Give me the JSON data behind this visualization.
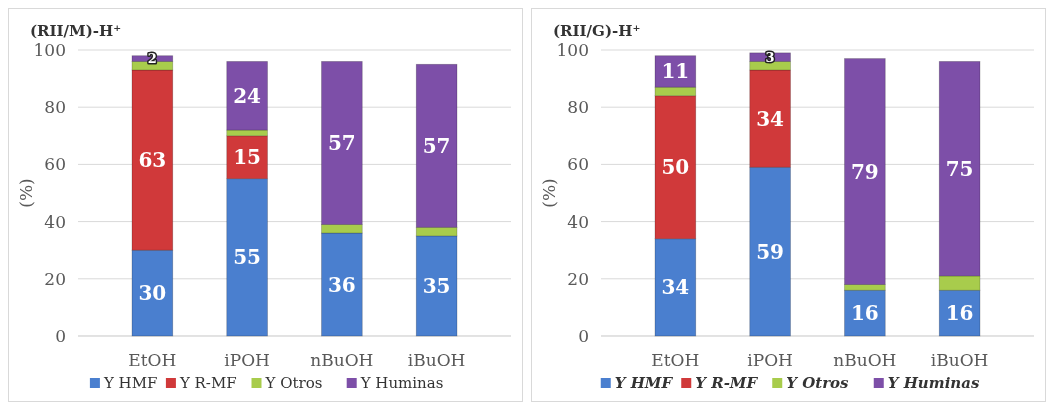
{
  "chart_data": [
    {
      "type": "bar",
      "title": "(RII/M)-H⁺",
      "ylabel": "(%)",
      "categories": [
        "EtOH",
        "iPOH",
        "nBuOH",
        "iBuOH"
      ],
      "stacked": true,
      "ylim": [
        0,
        100
      ],
      "yticks": [
        0,
        20,
        40,
        60,
        80,
        100
      ],
      "grid": "y",
      "legend": "bottom",
      "series": [
        {
          "name": "Y HMF",
          "color": "#4a7fcf",
          "values": [
            30,
            55,
            36,
            35
          ],
          "value_labels": [
            "30",
            "55",
            "36",
            "35"
          ]
        },
        {
          "name": "Y R-MF",
          "color": "#d0393a",
          "values": [
            63,
            15,
            0,
            0
          ],
          "value_labels": [
            "63",
            "15",
            null,
            null
          ]
        },
        {
          "name": "Y Otros",
          "color": "#a8cc4c",
          "values": [
            3,
            2,
            3,
            3
          ],
          "value_labels": [
            null,
            null,
            null,
            null
          ]
        },
        {
          "name": "Y Huminas",
          "color": "#7d4fa8",
          "values": [
            2,
            24,
            57,
            57
          ],
          "value_labels": [
            "2",
            "24",
            "57",
            "57"
          ]
        }
      ]
    },
    {
      "type": "bar",
      "title": "(RII/G)-H⁺",
      "ylabel": "(%)",
      "categories": [
        "EtOH",
        "iPOH",
        "nBuOH",
        "iBuOH"
      ],
      "stacked": true,
      "ylim": [
        0,
        100
      ],
      "yticks": [
        0,
        20,
        40,
        60,
        80,
        100
      ],
      "grid": "y",
      "legend": "bottom",
      "series": [
        {
          "name": "Y HMF",
          "color": "#4a7fcf",
          "values": [
            34,
            59,
            16,
            16
          ],
          "value_labels": [
            "34",
            "59",
            "16",
            "16"
          ]
        },
        {
          "name": "Y R-MF",
          "color": "#d0393a",
          "values": [
            50,
            34,
            0,
            0
          ],
          "value_labels": [
            "50",
            "34",
            null,
            null
          ]
        },
        {
          "name": "Y Otros",
          "color": "#a8cc4c",
          "values": [
            3,
            3,
            2,
            5
          ],
          "value_labels": [
            null,
            null,
            null,
            null
          ]
        },
        {
          "name": "Y Huminas",
          "color": "#7d4fa8",
          "values": [
            11,
            3,
            79,
            75
          ],
          "value_labels": [
            "11",
            "3",
            "79",
            "75"
          ]
        }
      ]
    }
  ]
}
